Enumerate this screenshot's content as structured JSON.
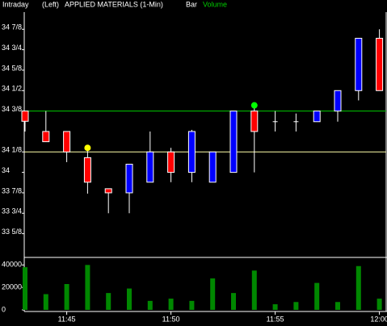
{
  "chart_data": {
    "type": "candlestick",
    "header": [
      "Intraday",
      "(Left)",
      "APPLIED MATERIALS (1-Min)",
      "Bar"
    ],
    "volume_label": "Volume",
    "categories": [
      null,
      null,
      "11:45",
      null,
      null,
      null,
      null,
      "11:50",
      null,
      null,
      null,
      null,
      "11:55",
      null,
      null,
      null,
      null,
      "12:00"
    ],
    "open": [
      34.375,
      34.25,
      34.25,
      34.09,
      33.9,
      33.875,
      33.94,
      34.125,
      34.0,
      33.94,
      34.0,
      34.375,
      34.31,
      34.31,
      34.31,
      34.375,
      34.5,
      34.82
    ],
    "high": [
      34.375,
      34.375,
      34.25,
      34.15,
      33.9,
      34.05,
      34.25,
      34.15,
      34.26,
      34.125,
      34.375,
      34.41,
      34.375,
      34.36,
      34.375,
      34.5,
      34.82,
      34.875
    ],
    "low": [
      34.25,
      34.1875,
      34.0625,
      33.87,
      33.75,
      33.75,
      33.94,
      33.94,
      33.94,
      33.94,
      34.0,
      34.0,
      34.25,
      34.25,
      34.31,
      34.31,
      34.44,
      34.5
    ],
    "close": [
      34.3125,
      34.1875,
      34.125,
      33.94,
      33.875,
      34.05,
      34.125,
      34.0,
      34.25,
      34.125,
      34.375,
      34.25,
      34.31,
      34.31,
      34.375,
      34.5,
      34.82,
      34.5
    ],
    "up_color": "#0000ff",
    "down_color": "#ff0000",
    "ylim": [
      33.48,
      34.98
    ],
    "yticks": [
      {
        "value": 34.875,
        "label": "34 7/8"
      },
      {
        "value": 34.75,
        "label": "34 3/4"
      },
      {
        "value": 34.625,
        "label": "34 5/8"
      },
      {
        "value": 34.5,
        "label": "34 1/2"
      },
      {
        "value": 34.375,
        "label": "34 3/8"
      },
      {
        "value": 34.125,
        "label": "34 1/8"
      },
      34,
      {
        "value": 33.875,
        "label": "33 7/8"
      },
      {
        "value": 33.75,
        "label": "33 3/4"
      },
      {
        "value": 33.625,
        "label": "33 5/8"
      }
    ],
    "lines": [
      {
        "value": 34.375,
        "color": "#00cc00"
      },
      {
        "value": 34.125,
        "color": "#ffffaa"
      }
    ],
    "markers": [
      {
        "index": 3,
        "value": 34.15,
        "color": "#ffff00"
      },
      {
        "index": 11,
        "value": 34.41,
        "color": "#00ff00"
      }
    ],
    "volume": {
      "values": [
        38000,
        14000,
        23000,
        40000,
        15000,
        19000,
        8000,
        10000,
        8000,
        28000,
        15000,
        35000,
        5000,
        7000,
        24000,
        7000,
        39000,
        10000
      ],
      "color": "#008800",
      "ylim": [
        0,
        46000
      ],
      "yticks": [
        40000,
        20000,
        0
      ]
    }
  }
}
